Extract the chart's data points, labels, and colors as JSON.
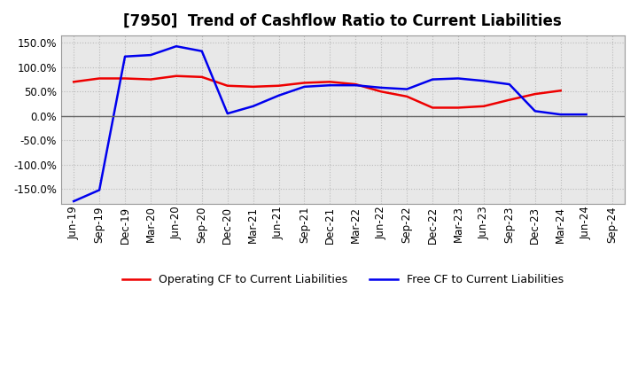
{
  "title": "[7950]  Trend of Cashflow Ratio to Current Liabilities",
  "x_labels": [
    "Jun-19",
    "Sep-19",
    "Dec-19",
    "Mar-20",
    "Jun-20",
    "Sep-20",
    "Dec-20",
    "Mar-21",
    "Jun-21",
    "Sep-21",
    "Dec-21",
    "Mar-22",
    "Jun-22",
    "Sep-22",
    "Dec-22",
    "Mar-23",
    "Jun-23",
    "Sep-23",
    "Dec-23",
    "Mar-24",
    "Jun-24",
    "Sep-24"
  ],
  "operating_cf": [
    70,
    77,
    77,
    75,
    82,
    80,
    62,
    60,
    62,
    68,
    70,
    65,
    50,
    40,
    17,
    17,
    20,
    33,
    45,
    52,
    null,
    null
  ],
  "free_cf": [
    -175,
    -152,
    122,
    125,
    143,
    133,
    5,
    20,
    42,
    60,
    63,
    63,
    58,
    55,
    75,
    77,
    72,
    65,
    10,
    3,
    3,
    null
  ],
  "ylim": [
    -180,
    165
  ],
  "yticks": [
    -150,
    -100,
    -50,
    0,
    50,
    100,
    150
  ],
  "operating_color": "#ee0000",
  "free_color": "#0000ee",
  "background_color": "#ffffff",
  "plot_bg_color": "#e8e8e8",
  "grid_color": "#bbbbbb",
  "legend_op": "Operating CF to Current Liabilities",
  "legend_free": "Free CF to Current Liabilities",
  "title_fontsize": 12,
  "tick_fontsize": 8.5,
  "legend_fontsize": 9
}
